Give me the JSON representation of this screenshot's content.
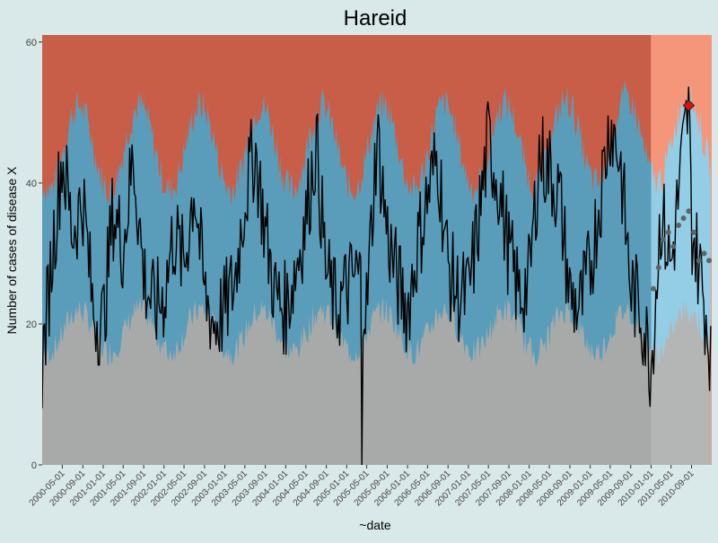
{
  "chart_data": {
    "type": "area",
    "title": "Hareid",
    "xlabel": "~date",
    "ylabel": "Number of cases of disease X",
    "ylim": [
      0,
      61
    ],
    "yticks": [
      0,
      20,
      40,
      60
    ],
    "date_range": [
      "2000-01-01",
      "2010-12-31"
    ],
    "baseline_end": "2010-01-01",
    "xtick_labels": [
      "2000-05-01",
      "2000-09-01",
      "2001-01-01",
      "2001-05-01",
      "2001-09-01",
      "2002-01-01",
      "2002-05-01",
      "2002-09-01",
      "2003-01-01",
      "2003-05-01",
      "2003-09-01",
      "2004-01-01",
      "2004-05-01",
      "2004-09-01",
      "2005-01-01",
      "2005-05-01",
      "2005-09-01",
      "2006-01-01",
      "2006-05-01",
      "2006-09-01",
      "2007-01-01",
      "2007-05-01",
      "2007-09-01",
      "2008-01-01",
      "2008-05-01",
      "2008-09-01",
      "2009-01-01",
      "2009-05-01",
      "2009-09-01",
      "2010-01-01",
      "2010-05-01",
      "2010-09-01"
    ],
    "series": [
      {
        "name": "",
        "description": "weekly cases (black line), approximate values",
        "x": [
          "2000-01-01",
          "2000-03-01",
          "2000-05-01",
          "2000-07-01",
          "2000-09-01",
          "2000-11-01",
          "2001-01-01",
          "2001-03-01",
          "2001-05-01",
          "2001-07-01",
          "2001-09-01",
          "2001-11-01",
          "2002-01-01",
          "2002-03-01",
          "2002-05-01",
          "2002-07-01",
          "2002-09-01",
          "2002-11-01",
          "2003-01-01",
          "2003-03-01",
          "2003-05-01",
          "2003-07-01",
          "2003-09-01",
          "2003-11-01",
          "2004-01-01",
          "2004-03-01",
          "2004-05-01",
          "2004-07-01",
          "2004-09-01",
          "2004-11-01",
          "2005-01-01",
          "2005-03-01",
          "2005-04-01",
          "2005-05-01",
          "2005-07-01",
          "2005-09-01",
          "2005-11-01",
          "2006-01-01",
          "2006-03-01",
          "2006-05-01",
          "2006-07-01",
          "2006-09-01",
          "2006-11-01",
          "2007-01-01",
          "2007-03-01",
          "2007-05-01",
          "2007-07-01",
          "2007-09-01",
          "2007-11-01",
          "2008-01-01",
          "2008-03-01",
          "2008-05-01",
          "2008-07-01",
          "2008-09-01",
          "2008-11-01",
          "2009-01-01",
          "2009-03-01",
          "2009-05-01",
          "2009-07-01",
          "2009-09-01",
          "2009-11-01",
          "2010-01-01",
          "2010-03-01",
          "2010-05-01",
          "2010-07-01",
          "2010-08-15",
          "2010-09-01",
          "2010-11-01",
          "2010-12-31"
        ],
        "values": [
          14,
          30,
          44,
          33,
          38,
          22,
          20,
          36,
          31,
          44,
          27,
          22,
          24,
          33,
          28,
          40,
          24,
          20,
          22,
          26,
          38,
          45,
          33,
          24,
          22,
          28,
          35,
          46,
          27,
          22,
          25,
          27,
          26,
          22,
          47,
          33,
          26,
          22,
          31,
          38,
          44,
          28,
          24,
          24,
          34,
          46,
          40,
          30,
          24,
          26,
          44,
          42,
          38,
          24,
          22,
          28,
          38,
          49,
          43,
          25,
          22,
          14,
          36,
          28,
          42,
          51,
          34,
          26,
          15
        ]
      },
      {
        "name": "",
        "description": "2010 model/expected values (grey dots), approximate",
        "x": [
          "2010-01-15",
          "2010-02-15",
          "2010-03-15",
          "2010-04-15",
          "2010-05-15",
          "2010-06-15",
          "2010-07-15",
          "2010-08-15",
          "2010-09-15",
          "2010-10-15",
          "2010-11-15",
          "2010-12-15"
        ],
        "values": [
          25,
          28,
          32,
          33,
          31,
          34,
          35,
          36,
          33,
          29,
          30,
          29
        ]
      }
    ],
    "highlight_point": {
      "x": "2010-08-15",
      "y": 51
    },
    "zones": [
      {
        "name": "grey",
        "color": "#a7aaa9"
      },
      {
        "name": "blue",
        "color": "#5a9dba"
      },
      {
        "name": "red",
        "color": "#c95e48"
      },
      {
        "name": "grey-future",
        "color": "#b4b6b5"
      },
      {
        "name": "blue-future",
        "color": "#93cde6"
      },
      {
        "name": "red-future",
        "color": "#f5957a"
      }
    ]
  }
}
